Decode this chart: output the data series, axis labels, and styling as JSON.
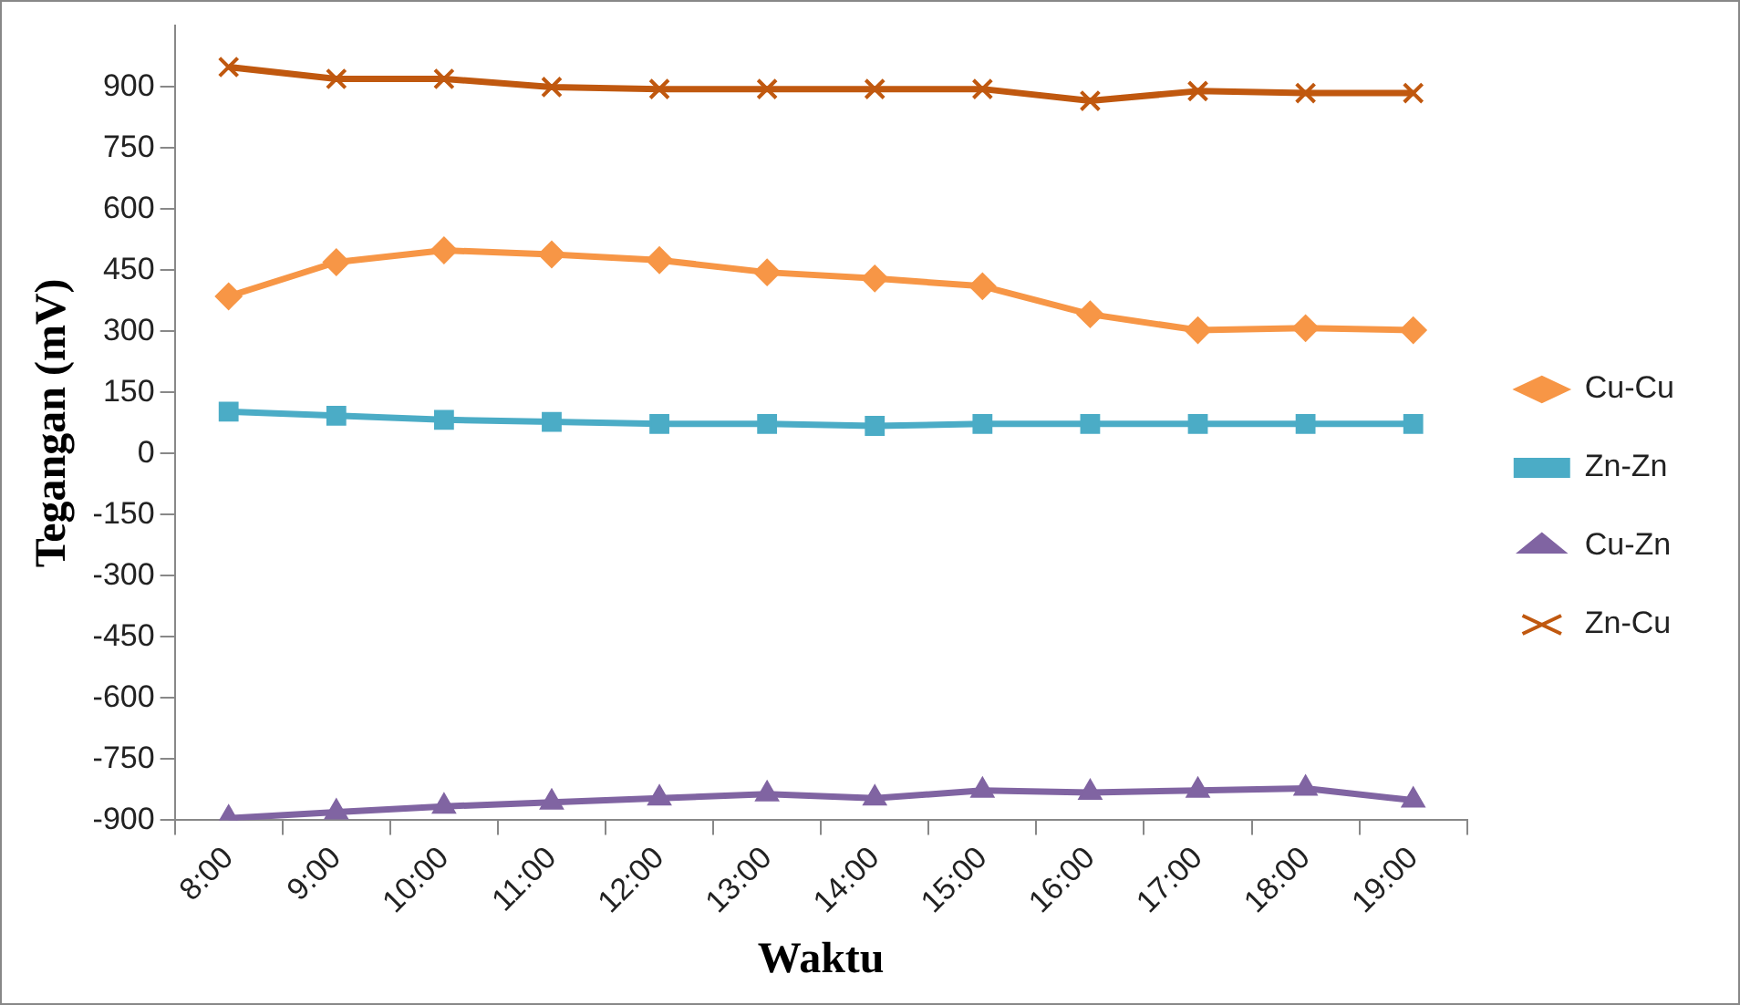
{
  "chart_data": {
    "type": "line",
    "xlabel": "Waktu",
    "ylabel": "Tegangan (mV)",
    "categories": [
      "8:00",
      "9:00",
      "10:00",
      "11:00",
      "12:00",
      "13:00",
      "14:00",
      "15:00",
      "16:00",
      "17:00",
      "18:00",
      "19:00"
    ],
    "series": [
      {
        "name": "Cu-Cu",
        "color": "#f79646",
        "marker": "diamond",
        "values": [
          386,
          470,
          499,
          489,
          475,
          445,
          430,
          411,
          342,
          303,
          308,
          303
        ]
      },
      {
        "name": "Zn-Zn",
        "color": "#4bacc6",
        "marker": "square",
        "values": [
          103,
          93,
          83,
          78,
          73,
          73,
          68,
          73,
          73,
          73,
          73,
          73
        ]
      },
      {
        "name": "Cu-Zn",
        "color": "#8064a2",
        "marker": "triangle",
        "values": [
          -895,
          -880,
          -866,
          -856,
          -846,
          -836,
          -846,
          -827,
          -832,
          -827,
          -822,
          -851
        ]
      },
      {
        "name": "Zn-Cu",
        "color": "#c0580f",
        "marker": "cross",
        "values": [
          949,
          920,
          920,
          900,
          895,
          895,
          895,
          895,
          866,
          890,
          885,
          885
        ]
      }
    ],
    "ylim": [
      -900,
      1050
    ],
    "yticks": [
      -900,
      -750,
      -600,
      -450,
      -300,
      -150,
      0,
      150,
      300,
      450,
      600,
      750,
      900
    ],
    "grid": false,
    "legend": "right",
    "line_style": "solid"
  }
}
